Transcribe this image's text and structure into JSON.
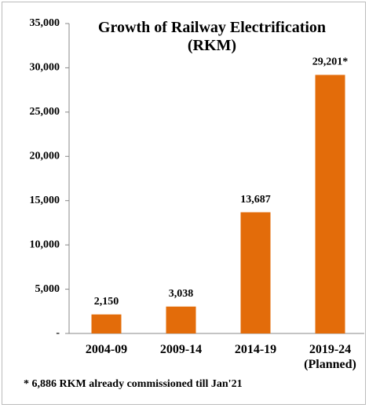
{
  "chart_data": {
    "type": "bar",
    "title": "Growth of Railway Electrification\n(RKM)",
    "categories": [
      "2004-09",
      "2009-14",
      "2014-19",
      "2019-24\n(Planned)"
    ],
    "values": [
      2150,
      3038,
      13687,
      29201
    ],
    "value_labels": [
      "2,150",
      "3,038",
      "13,687",
      "29,201*"
    ],
    "color": "#e36c0a",
    "ylim": [
      0,
      35000
    ],
    "yticks": [
      {
        "value": 0,
        "label": "-"
      },
      {
        "value": 5000,
        "label": "5,000"
      },
      {
        "value": 10000,
        "label": "10,000"
      },
      {
        "value": 15000,
        "label": "15,000"
      },
      {
        "value": 20000,
        "label": "20,000"
      },
      {
        "value": 25000,
        "label": "25,000"
      },
      {
        "value": 30000,
        "label": "30,000"
      },
      {
        "value": 35000,
        "label": "35,000"
      }
    ],
    "grid": false,
    "footnote": "* 6,886 RKM already commissioned till Jan'21"
  }
}
